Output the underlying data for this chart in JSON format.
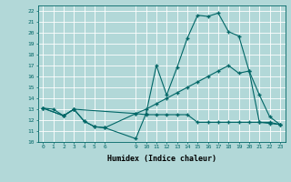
{
  "xlabel": "Humidex (Indice chaleur)",
  "bg_color": "#b2d8d8",
  "grid_color": "#ffffff",
  "line_color": "#006666",
  "xlim": [
    -0.5,
    23.5
  ],
  "ylim": [
    10,
    22.5
  ],
  "xticks": [
    0,
    1,
    2,
    3,
    4,
    5,
    6,
    9,
    10,
    11,
    12,
    13,
    14,
    15,
    16,
    17,
    18,
    19,
    20,
    21,
    22,
    23
  ],
  "yticks": [
    10,
    11,
    12,
    13,
    14,
    15,
    16,
    17,
    18,
    19,
    20,
    21,
    22
  ],
  "series": [
    {
      "x": [
        0,
        1,
        2,
        3,
        4,
        5,
        6,
        9,
        10,
        11,
        12,
        13,
        14,
        15,
        16,
        17,
        18,
        19,
        20,
        21,
        22,
        23
      ],
      "y": [
        13.1,
        13.0,
        12.4,
        13.0,
        11.9,
        11.4,
        11.3,
        10.3,
        12.6,
        17.0,
        14.3,
        16.8,
        19.5,
        21.6,
        21.5,
        21.8,
        20.1,
        19.7,
        16.5,
        14.3,
        12.3,
        11.6
      ]
    },
    {
      "x": [
        0,
        2,
        3,
        9,
        10,
        11,
        12,
        13,
        14,
        15,
        16,
        17,
        18,
        19,
        20,
        21,
        22,
        23
      ],
      "y": [
        13.1,
        12.4,
        13.0,
        12.6,
        13.0,
        13.5,
        14.0,
        14.5,
        15.0,
        15.5,
        16.0,
        16.5,
        17.0,
        16.3,
        16.5,
        11.8,
        11.7,
        11.6
      ]
    },
    {
      "x": [
        0,
        2,
        3,
        4,
        5,
        6,
        9,
        10,
        11,
        12,
        13,
        14,
        15,
        16,
        17,
        18,
        19,
        20,
        21,
        22,
        23
      ],
      "y": [
        13.1,
        12.4,
        13.0,
        11.9,
        11.4,
        11.3,
        12.6,
        12.5,
        12.5,
        12.5,
        12.5,
        12.5,
        11.8,
        11.8,
        11.8,
        11.8,
        11.8,
        11.8,
        11.8,
        11.8,
        11.6
      ]
    }
  ]
}
